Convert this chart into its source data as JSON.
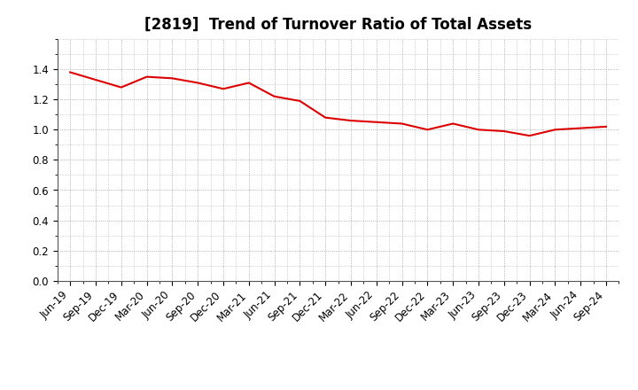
{
  "title": "[2819]  Trend of Turnover Ratio of Total Assets",
  "x_labels": [
    "Jun-19",
    "Sep-19",
    "Dec-19",
    "Mar-20",
    "Jun-20",
    "Sep-20",
    "Dec-20",
    "Mar-21",
    "Jun-21",
    "Sep-21",
    "Dec-21",
    "Mar-22",
    "Jun-22",
    "Sep-22",
    "Dec-22",
    "Mar-23",
    "Jun-23",
    "Sep-23",
    "Dec-23",
    "Mar-24",
    "Jun-24",
    "Sep-24"
  ],
  "y_values": [
    1.38,
    1.33,
    1.28,
    1.35,
    1.34,
    1.31,
    1.27,
    1.31,
    1.22,
    1.19,
    1.08,
    1.06,
    1.05,
    1.04,
    1.0,
    1.04,
    1.0,
    0.99,
    0.96,
    1.0,
    1.01,
    1.02
  ],
  "line_color": "#dd0000",
  "ylim": [
    0.0,
    1.6
  ],
  "yticks": [
    0.0,
    0.2,
    0.4,
    0.6,
    0.8,
    1.0,
    1.2,
    1.4
  ],
  "background_color": "#ffffff",
  "grid_color": "#999999",
  "title_fontsize": 12,
  "tick_fontsize": 8.5
}
